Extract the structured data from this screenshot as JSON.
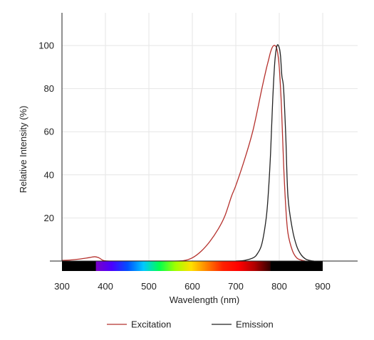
{
  "chart_data": {
    "type": "line",
    "xlabel": "Wavelength (nm)",
    "ylabel": "Relative Intensity (%)",
    "xlim": [
      300,
      900
    ],
    "ylim": [
      0,
      100
    ],
    "x_ticks": [
      "300",
      "400",
      "500",
      "600",
      "700",
      "800",
      "900"
    ],
    "y_ticks": [
      "20",
      "40",
      "60",
      "80",
      "100"
    ],
    "grid": true,
    "legend_position": "bottom",
    "series": [
      {
        "name": "Excitation",
        "color": "#b5312d",
        "x": [
          300,
          320,
          340,
          360,
          375,
          385,
          395,
          410,
          450,
          500,
          550,
          580,
          600,
          620,
          640,
          660,
          675,
          690,
          700,
          720,
          740,
          760,
          770,
          775,
          780,
          785,
          790,
          795,
          800,
          805,
          810,
          815,
          820,
          830,
          840,
          850,
          860
        ],
        "y": [
          0.3,
          0.5,
          0.9,
          1.5,
          2.0,
          1.5,
          0.3,
          0,
          0,
          0,
          0,
          0.2,
          1.5,
          4.5,
          9,
          15,
          21,
          30,
          35,
          47,
          61,
          80,
          89,
          93,
          97,
          99.5,
          100,
          98,
          90,
          72,
          45,
          25,
          13,
          5,
          1.5,
          0.5,
          0
        ]
      },
      {
        "name": "Emission",
        "color": "#222222",
        "x": [
          700,
          720,
          740,
          750,
          760,
          770,
          775,
          780,
          785,
          790,
          795,
          800,
          803,
          806,
          810,
          815,
          820,
          830,
          840,
          850,
          860,
          870,
          880
        ],
        "y": [
          0,
          0.3,
          1.5,
          3.5,
          8,
          20,
          32,
          50,
          75,
          93,
          100,
          99,
          95,
          86,
          80,
          58,
          30,
          15,
          7,
          3,
          1,
          0.3,
          0
        ]
      }
    ],
    "spectrum_bar": {
      "range": [
        378,
        780
      ],
      "stops": [
        "#7a00c8",
        "#4a00ff",
        "#0050ff",
        "#00c8ff",
        "#00ff50",
        "#a0ff00",
        "#ffe000",
        "#ff8000",
        "#ff2000",
        "#ff0000",
        "#b00000",
        "#300000"
      ]
    }
  }
}
